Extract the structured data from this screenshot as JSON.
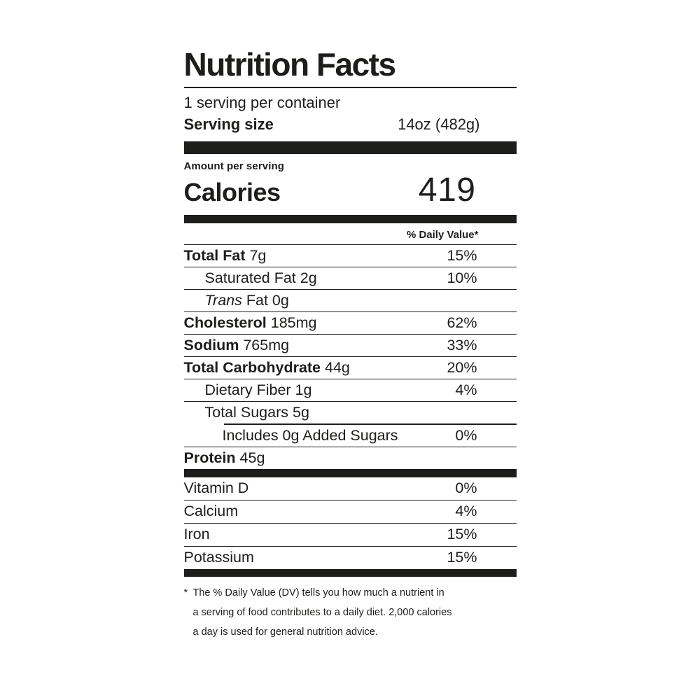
{
  "label": {
    "title": "Nutrition Facts",
    "servings_per_container": "1 serving per container",
    "serving_size_label": "Serving size",
    "serving_size_value": "14oz (482g)",
    "amount_per_serving": "Amount per serving",
    "calories_label": "Calories",
    "calories_value": "419",
    "daily_value_header": "% Daily Value*",
    "colors": {
      "ink": "#1d1d1b",
      "background": "#ffffff"
    },
    "nutrients": [
      {
        "name": "Total Fat",
        "amount": "7g",
        "dv": "15%",
        "style": "bold",
        "indent": 0
      },
      {
        "name": "Saturated Fat",
        "amount": "2g",
        "dv": "10%",
        "style": "plain",
        "indent": 1
      },
      {
        "name_italic": "Trans",
        "name": "Fat",
        "amount": "0g",
        "dv": "",
        "style": "italic",
        "indent": 1
      },
      {
        "name": "Cholesterol",
        "amount": "185mg",
        "dv": "62%",
        "style": "bold",
        "indent": 0
      },
      {
        "name": "Sodium",
        "amount": "765mg",
        "dv": "33%",
        "style": "bold",
        "indent": 0
      },
      {
        "name": "Total Carbohydrate",
        "amount": "44g",
        "dv": "20%",
        "style": "bold",
        "indent": 0
      },
      {
        "name": "Dietary Fiber",
        "amount": "1g",
        "dv": "4%",
        "style": "plain",
        "indent": 1
      },
      {
        "name": "Total Sugars",
        "amount": "5g",
        "dv": "",
        "style": "plain",
        "indent": 1,
        "border_bottom": false
      },
      {
        "name": "Includes 0g Added Sugars",
        "amount": "",
        "dv": "0%",
        "style": "plain",
        "indent": 2,
        "sep_above_indented": true
      },
      {
        "name": "Protein",
        "amount": "45g",
        "dv": "",
        "style": "bold",
        "indent": 0,
        "border_bottom": false
      }
    ],
    "vitamins": [
      {
        "name": "Vitamin D",
        "dv": "0%"
      },
      {
        "name": "Calcium",
        "dv": "4%"
      },
      {
        "name": "Iron",
        "dv": "15%"
      },
      {
        "name": "Potassium",
        "dv": "15%"
      }
    ],
    "footnote_asterisk": "*",
    "footnote_lines": [
      "The % Daily Value (DV) tells you how much a nutrient in",
      "a serving of food contributes to a daily diet. 2,000 calories",
      "a day is used for general nutrition advice."
    ]
  }
}
